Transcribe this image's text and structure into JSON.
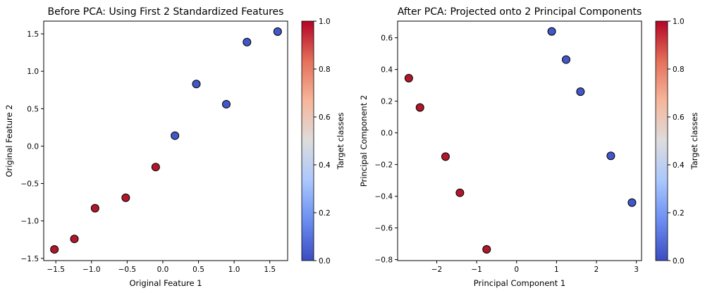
{
  "chart_data": [
    {
      "type": "scatter",
      "title": "Before PCA: Using First 2 Standardized Features",
      "xlabel": "Original Feature 1",
      "ylabel": "Original Feature 2",
      "xlim": [
        -1.67,
        1.75
      ],
      "ylim": [
        -1.53,
        1.67
      ],
      "xticks": [
        -1.5,
        -1.0,
        -0.5,
        0.0,
        0.5,
        1.0,
        1.5
      ],
      "xtick_labels": [
        "−1.5",
        "−1.0",
        "−0.5",
        "0.0",
        "0.5",
        "1.0",
        "1.5"
      ],
      "yticks": [
        -1.5,
        -1.0,
        -0.5,
        0.0,
        0.5,
        1.0,
        1.5
      ],
      "ytick_labels": [
        "−1.5",
        "−1.0",
        "−0.5",
        "0.0",
        "0.5",
        "1.0",
        "1.5"
      ],
      "colorbar": {
        "label": "Target classes",
        "range": [
          0.0,
          1.0
        ],
        "ticks": [
          0.0,
          0.2,
          0.4,
          0.6,
          0.8,
          1.0
        ],
        "tick_labels": [
          "0.0",
          "0.2",
          "0.4",
          "0.6",
          "0.8",
          "1.0"
        ],
        "colormap": "coolwarm"
      },
      "points": [
        {
          "x": -1.52,
          "y": -1.38,
          "class": 1
        },
        {
          "x": -1.24,
          "y": -1.24,
          "class": 1
        },
        {
          "x": -0.95,
          "y": -0.83,
          "class": 1
        },
        {
          "x": -0.52,
          "y": -0.69,
          "class": 1
        },
        {
          "x": -0.1,
          "y": -0.28,
          "class": 1
        },
        {
          "x": 0.17,
          "y": 0.14,
          "class": 0
        },
        {
          "x": 0.47,
          "y": 0.83,
          "class": 0
        },
        {
          "x": 0.89,
          "y": 0.56,
          "class": 0
        },
        {
          "x": 1.18,
          "y": 1.39,
          "class": 0
        },
        {
          "x": 1.61,
          "y": 1.53,
          "class": 0
        }
      ]
    },
    {
      "type": "scatter",
      "title": "After PCA: Projected onto 2 Principal Components",
      "xlabel": "Principal Component 1",
      "ylabel": "Principal Component 2",
      "xlim": [
        -2.98,
        3.13
      ],
      "ylim": [
        -0.806,
        0.705
      ],
      "xticks": [
        -2,
        -1,
        0,
        1,
        2,
        3
      ],
      "xtick_labels": [
        "−2",
        "−1",
        "0",
        "1",
        "2",
        "3"
      ],
      "yticks": [
        -0.8,
        -0.6,
        -0.4,
        -0.2,
        0.0,
        0.2,
        0.4,
        0.6
      ],
      "ytick_labels": [
        "−0.8",
        "−0.6",
        "−0.4",
        "−0.2",
        "0.0",
        "0.2",
        "0.4",
        "0.6"
      ],
      "colorbar": {
        "label": "Target classes",
        "range": [
          0.0,
          1.0
        ],
        "ticks": [
          0.0,
          0.2,
          0.4,
          0.6,
          0.8,
          1.0
        ],
        "tick_labels": [
          "0.0",
          "0.2",
          "0.4",
          "0.6",
          "0.8",
          "1.0"
        ],
        "colormap": "coolwarm"
      },
      "points": [
        {
          "x": -2.7,
          "y": 0.345,
          "class": 1
        },
        {
          "x": -2.42,
          "y": 0.16,
          "class": 1
        },
        {
          "x": -1.78,
          "y": -0.15,
          "class": 1
        },
        {
          "x": -1.42,
          "y": -0.378,
          "class": 1
        },
        {
          "x": -0.75,
          "y": -0.735,
          "class": 1
        },
        {
          "x": 0.88,
          "y": 0.64,
          "class": 0
        },
        {
          "x": 1.24,
          "y": 0.462,
          "class": 0
        },
        {
          "x": 1.6,
          "y": 0.26,
          "class": 0
        },
        {
          "x": 2.36,
          "y": -0.145,
          "class": 0
        },
        {
          "x": 2.89,
          "y": -0.44,
          "class": 0
        }
      ]
    }
  ],
  "colors": {
    "class_0": "#4257c9",
    "class_1": "#b0172b",
    "marker_edge": "#000000",
    "colormap_stops": [
      "#3b4cc0",
      "#6b8df0",
      "#aac7fd",
      "#dddcdc",
      "#f6b69b",
      "#e5705a",
      "#b40426"
    ]
  }
}
